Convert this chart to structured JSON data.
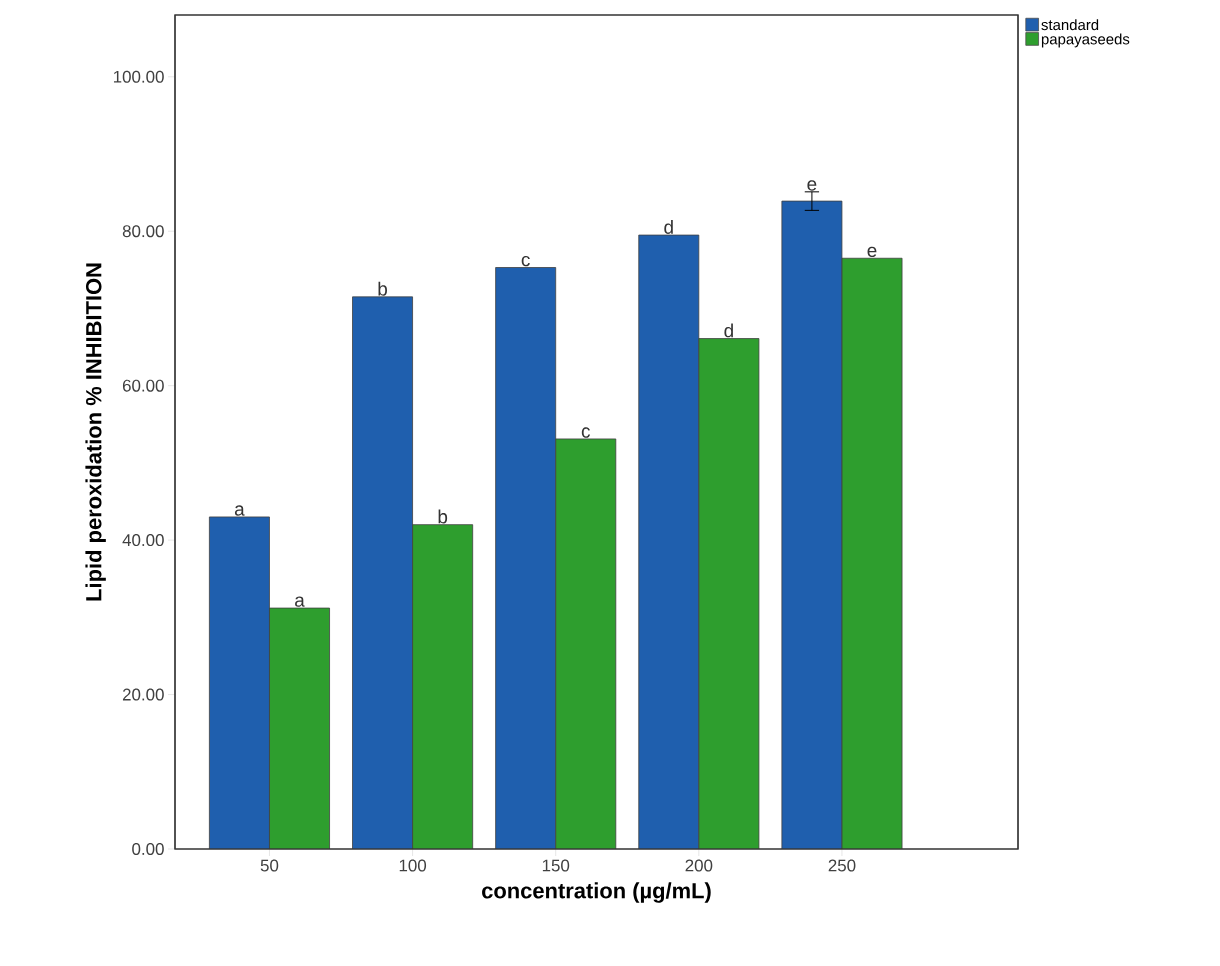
{
  "chart_data": {
    "type": "bar",
    "xlabel": "concentration (µg/mL)",
    "ylabel": "Lipid peroxidation % INHIBITION",
    "categories": [
      "50",
      "100",
      "150",
      "200",
      "250"
    ],
    "series": [
      {
        "name": "standard",
        "color": "#1f5fae",
        "values": [
          43.0,
          71.5,
          75.3,
          79.5,
          83.9
        ],
        "errors": [
          null,
          null,
          null,
          null,
          1.2
        ]
      },
      {
        "name": "papayaseeds",
        "color": "#2e9e2e",
        "values": [
          31.2,
          42.0,
          53.1,
          66.1,
          76.5
        ]
      }
    ],
    "ylim": [
      0,
      108
    ],
    "yticks": [
      {
        "value": 0,
        "label": "0.00"
      },
      {
        "value": 20,
        "label": "20.00"
      },
      {
        "value": 40,
        "label": "40.00"
      },
      {
        "value": 60,
        "label": "60.00"
      },
      {
        "value": 80,
        "label": "80.00"
      },
      {
        "value": 100,
        "label": "100.00"
      }
    ],
    "annotations": [
      {
        "text": "a",
        "x": "50",
        "y": 43.0
      },
      {
        "text": "a",
        "x": "50",
        "y": 31.2
      },
      {
        "text": "b",
        "x": "100",
        "y": 71.5
      },
      {
        "text": "b",
        "x": "100",
        "y": 42.0
      },
      {
        "text": "c",
        "x": "150",
        "y": 75.3
      },
      {
        "text": "c",
        "x": "150",
        "y": 53.1
      },
      {
        "text": "d",
        "x": "200",
        "y": 79.5
      },
      {
        "text": "d",
        "x": "200",
        "y": 66.1
      },
      {
        "text": "e",
        "x": "250",
        "y": 83.9
      },
      {
        "text": "e",
        "x": "250",
        "y": 76.5
      }
    ],
    "legend": "top right"
  }
}
